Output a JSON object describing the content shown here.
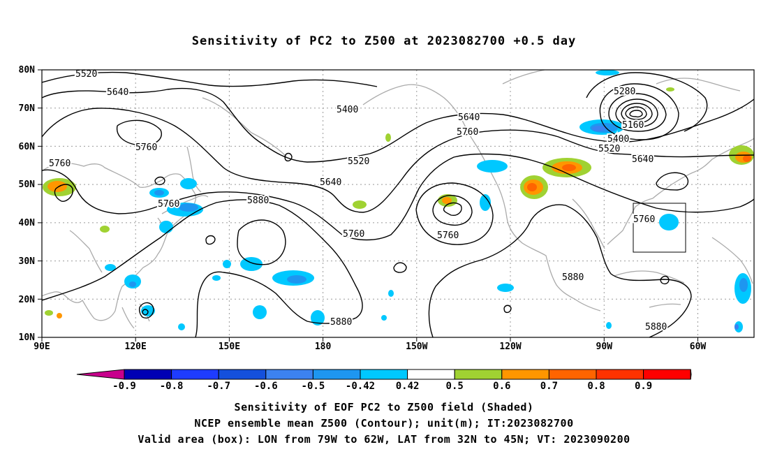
{
  "title": "Sensitivity of PC2 to Z500 at 2023082700 +0.5 day",
  "lat_labels": [
    "80N",
    "70N",
    "60N",
    "50N",
    "40N",
    "30N",
    "20N",
    "10N"
  ],
  "lon_labels": [
    "90E",
    "120E",
    "150E",
    "180",
    "150W",
    "120W",
    "90W",
    "60W"
  ],
  "contour_labels": [
    "5520",
    "5640",
    "5760",
    "5760",
    "5400",
    "5520",
    "5640",
    "5760",
    "5640",
    "5760",
    "5880",
    "5760",
    "5760",
    "5280",
    "5160",
    "5400",
    "5520",
    "5640",
    "5760",
    "5880",
    "5880",
    "5880"
  ],
  "colorbar": {
    "labels": [
      "-0.9",
      "-0.8",
      "-0.7",
      "-0.6",
      "-0.5",
      "-0.42",
      "0.42",
      "0.5",
      "0.6",
      "0.7",
      "0.8",
      "0.9"
    ],
    "colors": [
      "#c8008c",
      "#0000b4",
      "#1e3cff",
      "#1450dc",
      "#3c82f0",
      "#1e96f0",
      "#00c8ff",
      "#ffffff",
      "#a0d232",
      "#ff9600",
      "#ff6400",
      "#ff3200",
      "#ff0000",
      "#f5a0c8"
    ]
  },
  "caption": {
    "line1": "Sensitivity of EOF PC2 to Z500 field (Shaded)",
    "line2": "NCEP ensemble mean Z500 (Contour); unit(m); IT:2023082700",
    "line3": "Valid area (box): LON from 79W to 62W, LAT from 32N to 45N; VT: 2023090200"
  }
}
